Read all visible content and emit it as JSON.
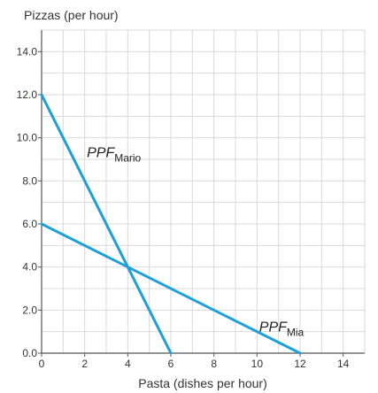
{
  "chart_data": {
    "type": "line",
    "title": "",
    "ylabel": "Pizzas (per hour)",
    "xlabel": "Pasta (dishes per hour)",
    "xlim": [
      0,
      15
    ],
    "ylim": [
      0,
      15
    ],
    "x_ticks": [
      0,
      2,
      4,
      6,
      8,
      10,
      12,
      14
    ],
    "y_ticks": [
      0,
      2,
      4,
      6,
      8,
      10,
      12,
      14
    ],
    "x_tick_labels": [
      "0",
      "2",
      "4",
      "6",
      "8",
      "10",
      "12",
      "14"
    ],
    "y_tick_labels": [
      "0.0",
      "2.0",
      "4.0",
      "6.0",
      "8.0",
      "10.0",
      "12.0",
      "14.0"
    ],
    "grid": true,
    "series": [
      {
        "label_main": "PPF",
        "label_sub": "Mario",
        "label_at": [
          2.1,
          9.1
        ],
        "color": "#1e9fd8",
        "points": [
          [
            0,
            12
          ],
          [
            6,
            0
          ]
        ]
      },
      {
        "label_main": "PPF",
        "label_sub": "Mia",
        "label_at": [
          10.1,
          1.0
        ],
        "color": "#1e9fd8",
        "points": [
          [
            0,
            6
          ],
          [
            12,
            0
          ]
        ]
      }
    ]
  }
}
